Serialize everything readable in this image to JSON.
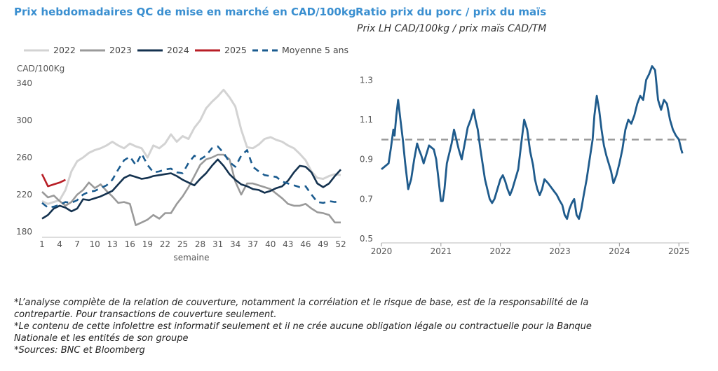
{
  "left_title": "Prix hebdomadaires QC de mise en marché en CAD/100kg",
  "right_title": "Ratio prix du porc / prix du maïs",
  "right_subtitle": "Prix LH CAD/100kg / prix maïs CAD/TM",
  "notes": [
    "*L’analyse complète de la relation de couverture, notamment la corrélation et le risque de base, est de la responsabilité de la",
    "contrepartie. Pour transactions de couverture seulement.",
    "*Le contenu de cette infolettre est informatif seulement et il ne crée aucune obligation légale ou contractuelle pour la Banque",
    "Nationale et les entités de son groupe",
    "*Sources: BNC et Bloomberg"
  ],
  "colors": {
    "title": "#3a8fd0",
    "s2022": "#d3d3d3",
    "s2023": "#9a9a9a",
    "s2024": "#14324f",
    "s2025": "#b81e26",
    "avg": "#1a5b8f",
    "ratio": "#1f5b8c",
    "ref": "#999999"
  },
  "chart_data": [
    {
      "type": "line",
      "title": "Prix hebdomadaires QC de mise en marché en CAD/100kg",
      "ylabel": "CAD/100Kg",
      "xlabel": "semaine",
      "ylim": [
        180,
        340
      ],
      "yticks": [
        180,
        220,
        260,
        300,
        340
      ],
      "xlim": [
        1,
        52
      ],
      "xticks": [
        1,
        4,
        7,
        10,
        13,
        16,
        19,
        22,
        25,
        28,
        31,
        34,
        37,
        40,
        43,
        46,
        49,
        52
      ],
      "legend_position": "top",
      "series": [
        {
          "name": "2022",
          "style": "solid",
          "color": "#d3d3d3",
          "x": [
            1,
            2,
            3,
            4,
            5,
            6,
            7,
            8,
            9,
            10,
            11,
            12,
            13,
            14,
            15,
            16,
            17,
            18,
            19,
            20,
            21,
            22,
            23,
            24,
            25,
            26,
            27,
            28,
            29,
            30,
            31,
            32,
            33,
            34,
            35,
            36,
            37,
            38,
            39,
            40,
            41,
            42,
            43,
            44,
            45,
            46,
            47,
            48,
            49,
            50,
            51,
            52
          ],
          "y": [
            213,
            210,
            212,
            214,
            225,
            245,
            256,
            260,
            265,
            268,
            270,
            273,
            277,
            273,
            270,
            275,
            272,
            270,
            260,
            273,
            270,
            275,
            285,
            277,
            283,
            280,
            292,
            300,
            313,
            320,
            326,
            333,
            325,
            315,
            290,
            271,
            270,
            274,
            280,
            282,
            279,
            277,
            273,
            270,
            264,
            257,
            245,
            238,
            237,
            240,
            242,
            241
          ]
        },
        {
          "name": "2023",
          "style": "solid",
          "color": "#9a9a9a",
          "x": [
            1,
            2,
            3,
            4,
            5,
            6,
            7,
            8,
            9,
            10,
            11,
            12,
            13,
            14,
            15,
            16,
            17,
            18,
            19,
            20,
            21,
            22,
            23,
            24,
            25,
            26,
            27,
            28,
            29,
            30,
            31,
            32,
            33,
            34,
            35,
            36,
            37,
            38,
            39,
            40,
            41,
            42,
            43,
            44,
            45,
            46,
            47,
            48,
            49,
            50,
            51,
            52
          ],
          "y": [
            223,
            217,
            219,
            213,
            208,
            212,
            220,
            225,
            233,
            227,
            231,
            224,
            218,
            211,
            212,
            210,
            187,
            190,
            193,
            198,
            194,
            200,
            200,
            210,
            218,
            228,
            240,
            252,
            258,
            260,
            263,
            263,
            258,
            234,
            220,
            232,
            232,
            230,
            228,
            226,
            221,
            216,
            210,
            208,
            208,
            210,
            205,
            201,
            200,
            198,
            190,
            190
          ]
        },
        {
          "name": "2024",
          "style": "solid",
          "color": "#14324f",
          "x": [
            1,
            2,
            3,
            4,
            5,
            6,
            7,
            8,
            9,
            10,
            11,
            12,
            13,
            14,
            15,
            16,
            17,
            18,
            19,
            20,
            21,
            22,
            23,
            24,
            25,
            26,
            27,
            28,
            29,
            30,
            31,
            32,
            33,
            34,
            35,
            36,
            37,
            38,
            39,
            40,
            41,
            42,
            43,
            44,
            45,
            46,
            47,
            48,
            49,
            50,
            51,
            52
          ],
          "y": [
            194,
            198,
            205,
            208,
            206,
            202,
            205,
            215,
            214,
            216,
            218,
            221,
            224,
            231,
            238,
            241,
            239,
            237,
            238,
            240,
            241,
            242,
            243,
            240,
            236,
            233,
            230,
            237,
            243,
            251,
            258,
            251,
            242,
            236,
            231,
            229,
            226,
            225,
            222,
            224,
            227,
            229,
            235,
            244,
            251,
            250,
            244,
            232,
            228,
            232,
            240,
            247
          ]
        },
        {
          "name": "2025",
          "style": "solid",
          "color": "#b81e26",
          "x": [
            1,
            2,
            3,
            4,
            5
          ],
          "y": [
            242,
            229,
            231,
            233,
            236
          ]
        },
        {
          "name": "Moyenne 5 ans",
          "style": "dashed",
          "color": "#1a5b8f",
          "x": [
            1,
            2,
            3,
            4,
            5,
            6,
            7,
            8,
            9,
            10,
            11,
            12,
            13,
            14,
            15,
            16,
            17,
            18,
            19,
            20,
            21,
            22,
            23,
            24,
            25,
            26,
            27,
            28,
            29,
            30,
            31,
            32,
            33,
            34,
            35,
            36,
            37,
            38,
            39,
            40,
            41,
            42,
            43,
            44,
            45,
            46,
            47,
            48,
            49,
            50,
            51,
            52
          ],
          "y": [
            211,
            206,
            207,
            209,
            212,
            211,
            214,
            220,
            223,
            224,
            227,
            230,
            236,
            247,
            257,
            261,
            252,
            264,
            252,
            244,
            245,
            247,
            248,
            244,
            243,
            254,
            262,
            258,
            262,
            270,
            272,
            265,
            255,
            250,
            262,
            268,
            250,
            245,
            241,
            240,
            239,
            234,
            232,
            230,
            228,
            229,
            220,
            212,
            211,
            213,
            212,
            213
          ]
        }
      ]
    },
    {
      "type": "line",
      "title": "Ratio prix du porc / prix du maïs",
      "subtitle": "Prix LH CAD/100kg / prix maïs CAD/TM",
      "ylim": [
        0.5,
        1.4
      ],
      "yticks": [
        "0.5",
        "0.7",
        "0.9",
        "1.1",
        "1.3"
      ],
      "xlim": [
        2020.0,
        2025.08
      ],
      "xticks": [
        "2020",
        "2021",
        "2022",
        "2023",
        "2024",
        "2025"
      ],
      "reference_line": 1.0,
      "series": [
        {
          "name": "",
          "color": "#1f5b8c",
          "x": [
            2020.0,
            2020.04,
            2020.08,
            2020.12,
            2020.16,
            2020.2,
            2020.22,
            2020.25,
            2020.28,
            2020.32,
            2020.36,
            2020.4,
            2020.45,
            2020.5,
            2020.55,
            2020.6,
            2020.63,
            2020.67,
            2020.71,
            2020.75,
            2020.8,
            2020.84,
            2020.88,
            2020.92,
            2020.96,
            2021.0,
            2021.03,
            2021.06,
            2021.1,
            2021.14,
            2021.18,
            2021.22,
            2021.26,
            2021.3,
            2021.35,
            2021.4,
            2021.45,
            2021.5,
            2021.55,
            2021.58,
            2021.62,
            2021.66,
            2021.7,
            2021.74,
            2021.78,
            2021.82,
            2021.86,
            2021.9,
            2021.95,
            2022.0,
            2022.04,
            2022.08,
            2022.12,
            2022.16,
            2022.2,
            2022.25,
            2022.3,
            2022.35,
            2022.4,
            2022.45,
            2022.5,
            2022.55,
            2022.58,
            2022.62,
            2022.66,
            2022.7,
            2022.74,
            2022.8,
            2022.85,
            2022.9,
            2022.95,
            2023.0,
            2023.04,
            2023.08,
            2023.12,
            2023.16,
            2023.2,
            2023.24,
            2023.28,
            2023.32,
            2023.36,
            2023.4,
            2023.45,
            2023.5,
            2023.55,
            2023.58,
            2023.62,
            2023.66,
            2023.7,
            2023.74,
            2023.78,
            2023.82,
            2023.86,
            2023.9,
            2023.95,
            2024.0,
            2024.05,
            2024.1,
            2024.15,
            2024.2,
            2024.25,
            2024.3,
            2024.35,
            2024.4,
            2024.45,
            2024.5,
            2024.55,
            2024.6,
            2024.65,
            2024.7,
            2024.75,
            2024.8,
            2024.85,
            2024.9,
            2024.95,
            2025.0,
            2025.04,
            2025.06
          ],
          "y": [
            0.85,
            0.86,
            0.87,
            0.88,
            0.96,
            1.05,
            1.02,
            1.12,
            1.2,
            1.1,
            1.0,
            0.88,
            0.75,
            0.8,
            0.9,
            0.98,
            0.95,
            0.92,
            0.88,
            0.92,
            0.97,
            0.96,
            0.95,
            0.9,
            0.8,
            0.69,
            0.69,
            0.75,
            0.88,
            0.93,
            0.98,
            1.05,
            1.0,
            0.95,
            0.9,
            0.98,
            1.06,
            1.1,
            1.15,
            1.1,
            1.05,
            0.96,
            0.88,
            0.8,
            0.75,
            0.7,
            0.68,
            0.7,
            0.75,
            0.8,
            0.82,
            0.79,
            0.75,
            0.72,
            0.75,
            0.8,
            0.85,
            0.98,
            1.1,
            1.05,
            0.94,
            0.87,
            0.8,
            0.75,
            0.72,
            0.75,
            0.8,
            0.78,
            0.76,
            0.74,
            0.72,
            0.69,
            0.67,
            0.62,
            0.6,
            0.65,
            0.68,
            0.7,
            0.62,
            0.6,
            0.65,
            0.72,
            0.8,
            0.9,
            1.0,
            1.12,
            1.22,
            1.15,
            1.05,
            0.97,
            0.92,
            0.88,
            0.84,
            0.78,
            0.82,
            0.88,
            0.95,
            1.05,
            1.1,
            1.08,
            1.12,
            1.18,
            1.22,
            1.2,
            1.3,
            1.33,
            1.37,
            1.35,
            1.2,
            1.15,
            1.2,
            1.18,
            1.1,
            1.05,
            1.02,
            1.0,
            0.95,
            0.93
          ]
        }
      ]
    }
  ]
}
